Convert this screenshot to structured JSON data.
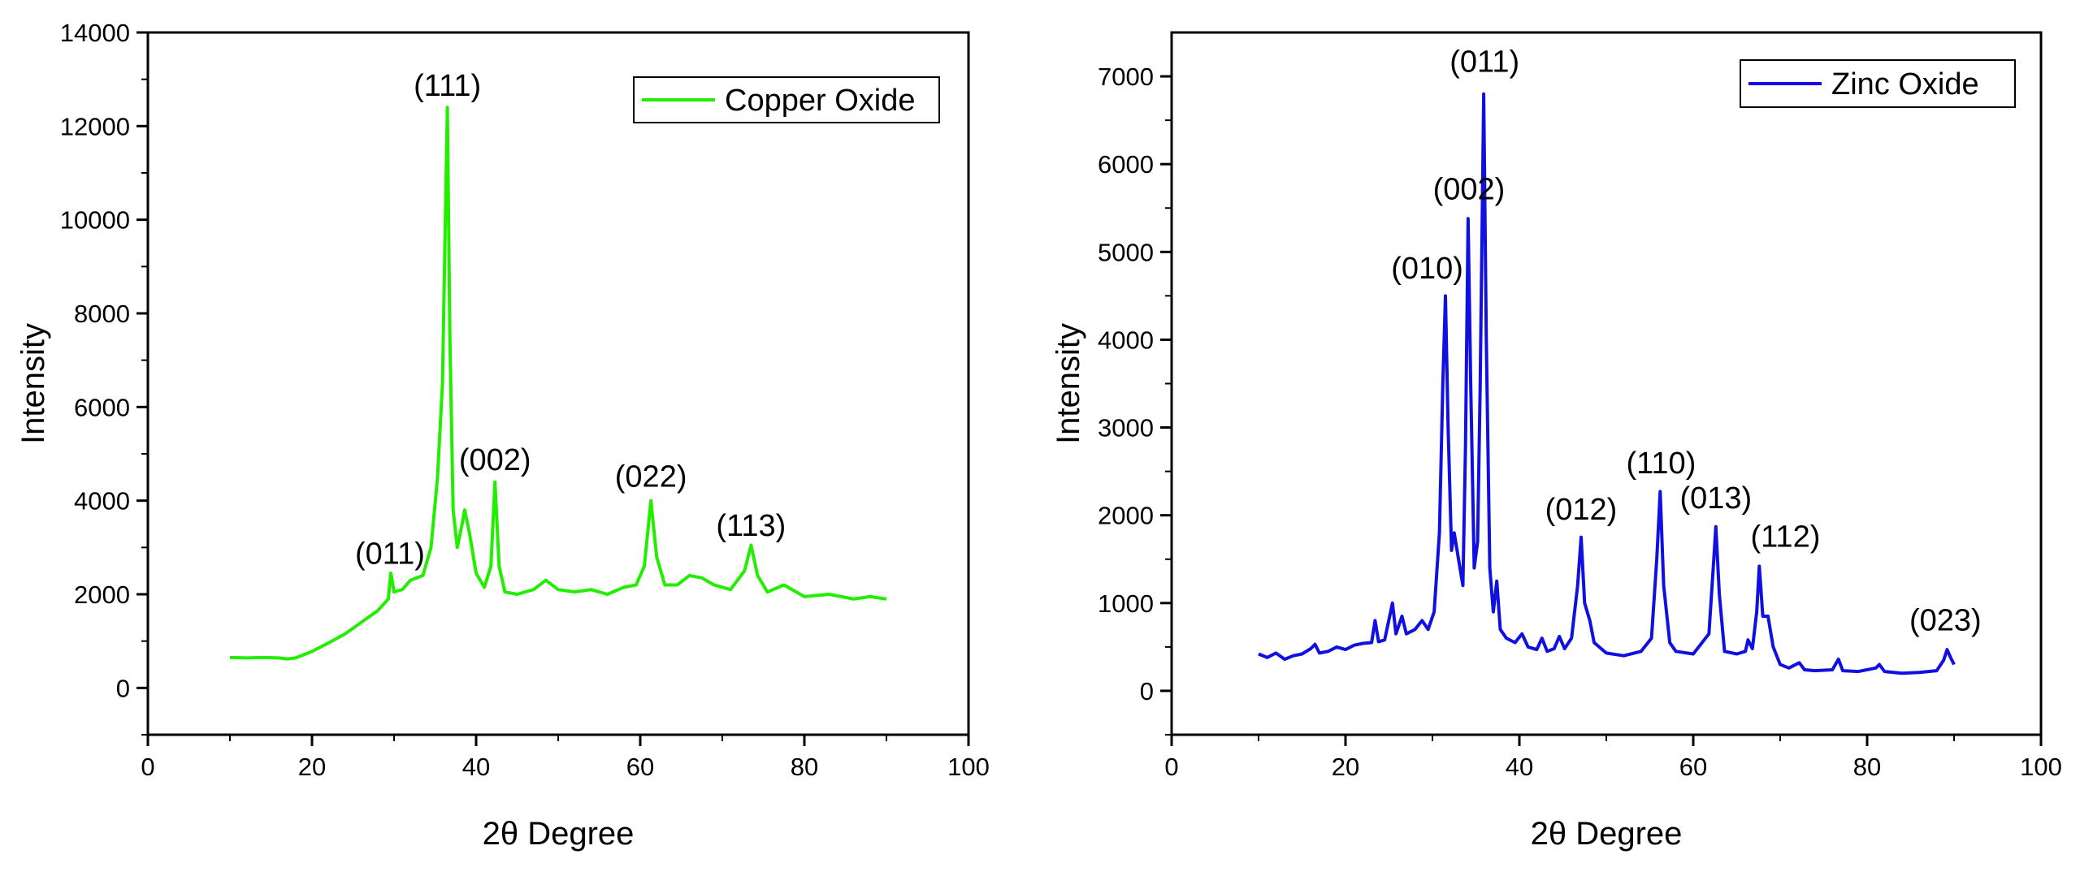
{
  "chart_data": [
    {
      "type": "line",
      "title": "",
      "xlabel": "2θ Degree",
      "ylabel": "Intensity",
      "xlim": [
        0,
        100
      ],
      "ylim": [
        -1000,
        14000
      ],
      "xticks": [
        0,
        20,
        40,
        60,
        80,
        100
      ],
      "yticks": [
        0,
        2000,
        4000,
        6000,
        8000,
        10000,
        12000,
        14000
      ],
      "grid": false,
      "legend_position": "top-right",
      "series": [
        {
          "name": "Copper Oxide",
          "color": "#22ee00",
          "points": [
            [
              10,
              650
            ],
            [
              12,
              640
            ],
            [
              14,
              650
            ],
            [
              16,
              640
            ],
            [
              17,
              620
            ],
            [
              18,
              640
            ],
            [
              20,
              780
            ],
            [
              22,
              960
            ],
            [
              24,
              1150
            ],
            [
              26,
              1400
            ],
            [
              28,
              1650
            ],
            [
              29.3,
              1900
            ],
            [
              29.6,
              2450
            ],
            [
              30,
              2050
            ],
            [
              31,
              2100
            ],
            [
              32,
              2300
            ],
            [
              33.5,
              2400
            ],
            [
              34.5,
              3000
            ],
            [
              35.3,
              4500
            ],
            [
              35.9,
              6500
            ],
            [
              36.2,
              9500
            ],
            [
              36.5,
              12400
            ],
            [
              36.8,
              7500
            ],
            [
              37.2,
              3800
            ],
            [
              37.7,
              3000
            ],
            [
              38.3,
              3500
            ],
            [
              38.6,
              3800
            ],
            [
              39.2,
              3300
            ],
            [
              40,
              2450
            ],
            [
              41,
              2150
            ],
            [
              41.8,
              2600
            ],
            [
              42.3,
              4400
            ],
            [
              42.8,
              2600
            ],
            [
              43.5,
              2050
            ],
            [
              45,
              2000
            ],
            [
              47,
              2100
            ],
            [
              48.5,
              2300
            ],
            [
              50,
              2100
            ],
            [
              52,
              2050
            ],
            [
              54,
              2100
            ],
            [
              56,
              2000
            ],
            [
              58,
              2150
            ],
            [
              59.5,
              2200
            ],
            [
              60.5,
              2600
            ],
            [
              61.3,
              4000
            ],
            [
              62,
              2800
            ],
            [
              63,
              2200
            ],
            [
              64.5,
              2200
            ],
            [
              66,
              2400
            ],
            [
              67.5,
              2350
            ],
            [
              69,
              2200
            ],
            [
              71,
              2100
            ],
            [
              72.7,
              2500
            ],
            [
              73.5,
              3050
            ],
            [
              74.3,
              2400
            ],
            [
              75.5,
              2050
            ],
            [
              77.5,
              2200
            ],
            [
              80,
              1950
            ],
            [
              83,
              2000
            ],
            [
              86,
              1900
            ],
            [
              88,
              1950
            ],
            [
              90,
              1900
            ]
          ]
        }
      ],
      "annotations": [
        {
          "text": "(011)",
          "x": 29.5,
          "y": 2650
        },
        {
          "text": "(111)",
          "x": 36.5,
          "y": 12650
        },
        {
          "text": "(002)",
          "x": 42.3,
          "y": 4650
        },
        {
          "text": "(022)",
          "x": 61.3,
          "y": 4300
        },
        {
          "text": "(113)",
          "x": 73.5,
          "y": 3250
        }
      ]
    },
    {
      "type": "line",
      "title": "",
      "xlabel": "2θ Degree",
      "ylabel": "Intensity",
      "xlim": [
        0,
        100
      ],
      "ylim": [
        -500,
        7500
      ],
      "xticks": [
        0,
        20,
        40,
        60,
        80,
        100
      ],
      "yticks": [
        0,
        1000,
        2000,
        3000,
        4000,
        5000,
        6000,
        7000
      ],
      "grid": false,
      "legend_position": "top-right",
      "series": [
        {
          "name": "Zinc Oxide",
          "color": "#1010e0",
          "points": [
            [
              10,
              420
            ],
            [
              11,
              380
            ],
            [
              12,
              430
            ],
            [
              13,
              360
            ],
            [
              14,
              400
            ],
            [
              15,
              420
            ],
            [
              16,
              480
            ],
            [
              16.5,
              530
            ],
            [
              17,
              430
            ],
            [
              18,
              450
            ],
            [
              19,
              500
            ],
            [
              20,
              470
            ],
            [
              21,
              520
            ],
            [
              22,
              540
            ],
            [
              23,
              550
            ],
            [
              23.4,
              800
            ],
            [
              23.8,
              560
            ],
            [
              24.5,
              580
            ],
            [
              25.4,
              1000
            ],
            [
              25.8,
              650
            ],
            [
              26.5,
              850
            ],
            [
              27,
              650
            ],
            [
              28,
              700
            ],
            [
              28.8,
              800
            ],
            [
              29.5,
              700
            ],
            [
              30.2,
              900
            ],
            [
              30.8,
              1800
            ],
            [
              31.2,
              3500
            ],
            [
              31.5,
              4500
            ],
            [
              31.8,
              3000
            ],
            [
              32.2,
              1600
            ],
            [
              32.5,
              1800
            ],
            [
              33,
              1500
            ],
            [
              33.5,
              1200
            ],
            [
              33.8,
              2800
            ],
            [
              34.1,
              5380
            ],
            [
              34.4,
              3500
            ],
            [
              34.8,
              1400
            ],
            [
              35.2,
              1700
            ],
            [
              35.5,
              3500
            ],
            [
              35.9,
              6800
            ],
            [
              36.2,
              4000
            ],
            [
              36.6,
              1400
            ],
            [
              37,
              900
            ],
            [
              37.4,
              1250
            ],
            [
              37.8,
              700
            ],
            [
              38.5,
              600
            ],
            [
              39.5,
              550
            ],
            [
              40.3,
              650
            ],
            [
              41,
              500
            ],
            [
              42,
              470
            ],
            [
              42.6,
              600
            ],
            [
              43.2,
              450
            ],
            [
              44,
              480
            ],
            [
              44.6,
              620
            ],
            [
              45.2,
              480
            ],
            [
              46,
              600
            ],
            [
              46.7,
              1200
            ],
            [
              47.1,
              1750
            ],
            [
              47.5,
              1000
            ],
            [
              48.1,
              800
            ],
            [
              48.6,
              550
            ],
            [
              50,
              430
            ],
            [
              52,
              400
            ],
            [
              54,
              450
            ],
            [
              55.2,
              600
            ],
            [
              55.8,
              1500
            ],
            [
              56.2,
              2270
            ],
            [
              56.6,
              1200
            ],
            [
              57.3,
              550
            ],
            [
              58,
              450
            ],
            [
              60,
              420
            ],
            [
              61.8,
              650
            ],
            [
              62.3,
              1400
            ],
            [
              62.6,
              1870
            ],
            [
              63,
              1100
            ],
            [
              63.6,
              450
            ],
            [
              65,
              420
            ],
            [
              66,
              450
            ],
            [
              66.3,
              580
            ],
            [
              66.8,
              480
            ],
            [
              67.3,
              900
            ],
            [
              67.6,
              1420
            ],
            [
              68,
              850
            ],
            [
              68.6,
              850
            ],
            [
              69.2,
              500
            ],
            [
              70,
              300
            ],
            [
              71,
              260
            ],
            [
              72.2,
              320
            ],
            [
              72.8,
              240
            ],
            [
              74,
              230
            ],
            [
              76,
              240
            ],
            [
              76.7,
              360
            ],
            [
              77.2,
              230
            ],
            [
              79,
              220
            ],
            [
              81,
              260
            ],
            [
              81.4,
              300
            ],
            [
              82,
              220
            ],
            [
              84,
              200
            ],
            [
              86,
              210
            ],
            [
              88,
              230
            ],
            [
              88.8,
              350
            ],
            [
              89.2,
              470
            ],
            [
              89.6,
              380
            ],
            [
              90,
              300
            ]
          ]
        }
      ],
      "annotations": [
        {
          "text": "(011)",
          "x": 36.0,
          "y": 7050
        },
        {
          "text": "(002)",
          "x": 34.2,
          "y": 5600
        },
        {
          "text": "(010)",
          "x": 29.4,
          "y": 4700
        },
        {
          "text": "(012)",
          "x": 47.1,
          "y": 1950
        },
        {
          "text": "(110)",
          "x": 56.3,
          "y": 2480
        },
        {
          "text": "(013)",
          "x": 62.6,
          "y": 2080
        },
        {
          "text": "(112)",
          "x": 70.6,
          "y": 1640
        },
        {
          "text": "(023)",
          "x": 89.0,
          "y": 690
        }
      ]
    }
  ]
}
